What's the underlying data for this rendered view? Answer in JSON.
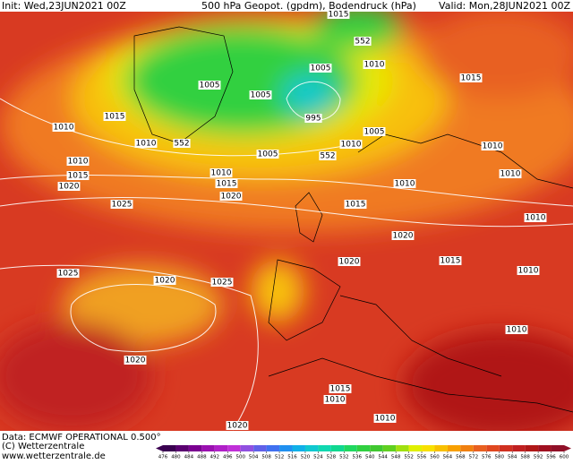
{
  "header": {
    "init": "Init: Wed,23JUN2021 00Z",
    "title": "500 hPa Geopot. (gpdm), Bodendruck (hPa)",
    "valid": "Valid: Mon,28JUN2021 00Z"
  },
  "map_labels": [
    "1015",
    "552",
    "1010",
    "1005",
    "1005",
    "1005",
    "1015",
    "1015",
    "995",
    "1010",
    "1010",
    "552",
    "1005",
    "1010",
    "1005",
    "552",
    "1010",
    "1010",
    "1015",
    "1020",
    "1010",
    "1015",
    "1020",
    "1010",
    "1010",
    "1015",
    "1025",
    "1010",
    "1020",
    "1020",
    "1015",
    "1010",
    "1025",
    "1020",
    "1025",
    "1010",
    "1020",
    "1015",
    "1010",
    "1010",
    "1020"
  ],
  "footer": {
    "data": "Data: ECMWF OPERATIONAL 0.500°",
    "copyright": "(C) Wetterzentrale",
    "url": "www.wetterzentrale.de"
  },
  "colorbar": {
    "ticks": [
      476,
      480,
      484,
      488,
      492,
      496,
      500,
      504,
      508,
      512,
      516,
      520,
      524,
      528,
      532,
      536,
      540,
      544,
      548,
      552,
      556,
      560,
      564,
      568,
      572,
      576,
      580,
      584,
      588,
      592,
      596,
      600
    ],
    "colors": [
      "#3a0050",
      "#5a0070",
      "#7a0090",
      "#9a10b0",
      "#b020c8",
      "#c030d8",
      "#9050e0",
      "#6060e8",
      "#4070f0",
      "#2090f0",
      "#10b0e8",
      "#10c8d0",
      "#10d8b0",
      "#10d890",
      "#20d860",
      "#30d040",
      "#40c830",
      "#60d020",
      "#a0e010",
      "#e0f000",
      "#f8e000",
      "#f8c000",
      "#f8a000",
      "#f08010",
      "#e86020",
      "#e04820",
      "#d03020",
      "#c02020",
      "#b01818",
      "#a01020",
      "#901028"
    ]
  }
}
